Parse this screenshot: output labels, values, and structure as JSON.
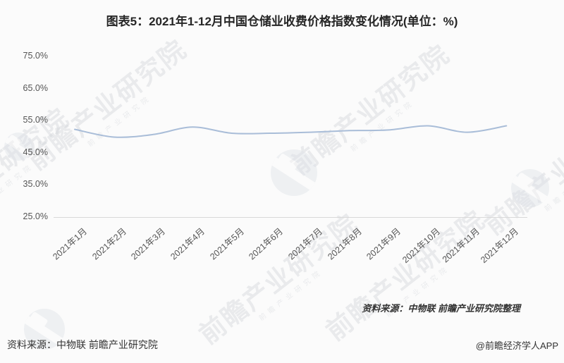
{
  "title": "图表5：2021年1-12月中国仓储业收费价格指数变化情况(单位：%)",
  "chart_data": {
    "type": "line",
    "title": "图表5：2021年1-12月中国仓储业收费价格指数变化情况(单位：%)",
    "categories": [
      "2021年1月",
      "2021年2月",
      "2021年3月",
      "2021年4月",
      "2021年5月",
      "2021年6月",
      "2021年7月",
      "2021年8月",
      "2021年9月",
      "2021年10月",
      "2021年11月",
      "2021年12月"
    ],
    "values": [
      52.3,
      49.9,
      50.7,
      53.0,
      51.1,
      51.1,
      51.4,
      51.9,
      52.1,
      53.4,
      51.4,
      53.4
    ],
    "xlabel": "",
    "ylabel": "",
    "ylim": [
      25,
      75
    ],
    "yticks": [
      "75.0%",
      "65.0%",
      "55.0%",
      "45.0%",
      "35.0%",
      "25.0%"
    ],
    "grid": false,
    "legend_position": "none",
    "line_color": "#a9bdd8",
    "axis_color": "#d9d9d9",
    "label_color": "#555555"
  },
  "chart_source_note": "资料来源：中物联 前瞻产业研究院整理",
  "footer": {
    "source": "资料来源：中物联 前瞻产业研究院",
    "credit": "@前瞻经济学人APP"
  },
  "watermark": {
    "text": "前瞻产业研究院",
    "subtext": "前瞻产业研究院"
  }
}
